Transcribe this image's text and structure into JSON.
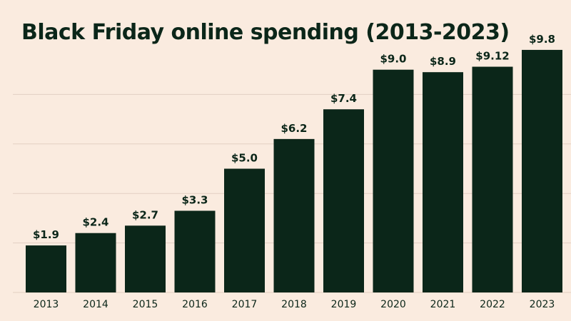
{
  "colors": {
    "background": "#FAEBDF",
    "bar": "#0B2619",
    "text": "#0B2619",
    "grid": "#E2CFC2"
  },
  "chart_data": {
    "type": "bar",
    "title": "Black Friday online spending (2013-2023)",
    "xlabel": "",
    "ylabel": "",
    "categories": [
      "2013",
      "2014",
      "2015",
      "2016",
      "2017",
      "2018",
      "2019",
      "2020",
      "2021",
      "2022",
      "2023"
    ],
    "values": [
      1.9,
      2.4,
      2.7,
      3.3,
      5.0,
      6.2,
      7.4,
      9.0,
      8.9,
      9.12,
      9.8
    ],
    "value_labels": [
      "$1.9",
      "$2.4",
      "$2.7",
      "$3.3",
      "$5.0",
      "$6.2",
      "$7.4",
      "$9.0",
      "$8.9",
      "$9.12",
      "$9.8"
    ],
    "ylim": [
      0,
      10
    ],
    "grid": true,
    "legend": "none"
  }
}
